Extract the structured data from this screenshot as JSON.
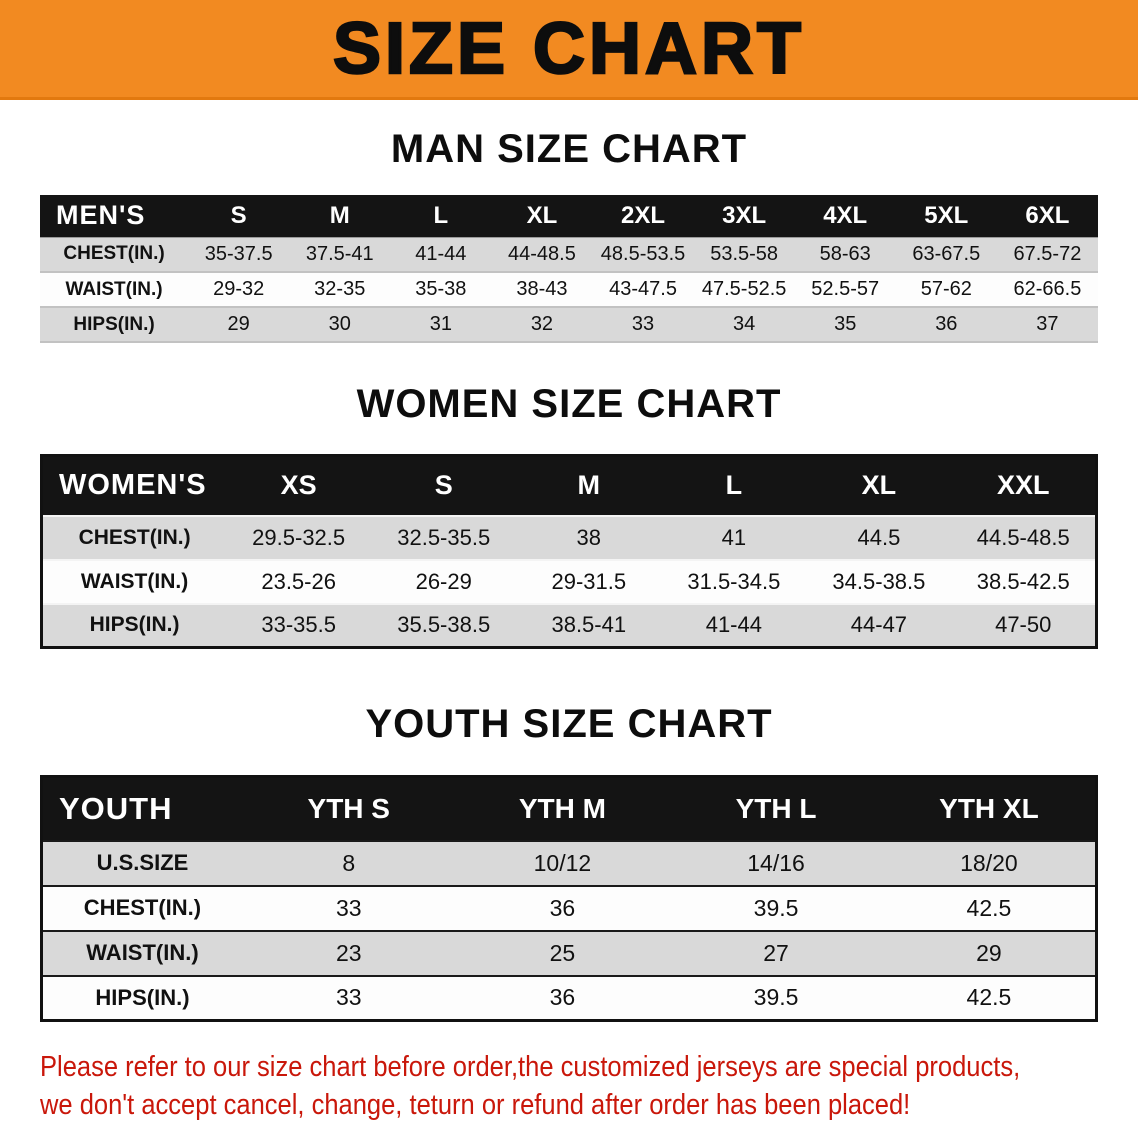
{
  "banner": {
    "title": "SIZE CHART"
  },
  "sections": [
    {
      "heading": "MAN SIZE CHART",
      "table": {
        "header": [
          "MEN'S",
          "S",
          "M",
          "L",
          "XL",
          "2XL",
          "3XL",
          "4XL",
          "5XL",
          "6XL"
        ],
        "rows": [
          [
            "CHEST(IN.)",
            "35-37.5",
            "37.5-41",
            "41-44",
            "44-48.5",
            "48.5-53.5",
            "53.5-58",
            "58-63",
            "63-67.5",
            "67.5-72"
          ],
          [
            "WAIST(IN.)",
            "29-32",
            "32-35",
            "35-38",
            "38-43",
            "43-47.5",
            "47.5-52.5",
            "52.5-57",
            "57-62",
            "62-66.5"
          ],
          [
            "HIPS(IN.)",
            "29",
            "30",
            "31",
            "32",
            "33",
            "34",
            "35",
            "36",
            "37"
          ]
        ]
      }
    },
    {
      "heading": "WOMEN SIZE CHART",
      "table": {
        "header": [
          "WOMEN'S",
          "XS",
          "S",
          "M",
          "L",
          "XL",
          "XXL"
        ],
        "rows": [
          [
            "CHEST(IN.)",
            "29.5-32.5",
            "32.5-35.5",
            "38",
            "41",
            "44.5",
            "44.5-48.5"
          ],
          [
            "WAIST(IN.)",
            "23.5-26",
            "26-29",
            "29-31.5",
            "31.5-34.5",
            "34.5-38.5",
            "38.5-42.5"
          ],
          [
            "HIPS(IN.)",
            "33-35.5",
            "35.5-38.5",
            "38.5-41",
            "41-44",
            "44-47",
            "47-50"
          ]
        ]
      }
    },
    {
      "heading": "YOUTH SIZE CHART",
      "table": {
        "header": [
          "YOUTH",
          "YTH S",
          "YTH M",
          "YTH L",
          "YTH XL"
        ],
        "rows": [
          [
            "U.S.SIZE",
            "8",
            "10/12",
            "14/16",
            "18/20"
          ],
          [
            "CHEST(IN.)",
            "33",
            "36",
            "39.5",
            "42.5"
          ],
          [
            "WAIST(IN.)",
            "23",
            "25",
            "27",
            "29"
          ],
          [
            "HIPS(IN.)",
            "33",
            "36",
            "39.5",
            "42.5"
          ]
        ]
      }
    }
  ],
  "footer": {
    "line1": "Please refer to our size chart before order,the customized jerseys are special products,",
    "line2": "we don't accept cancel, change, teturn or refund after order has been placed!"
  },
  "colors": {
    "banner_bg": "#F28A21",
    "table_header_bg": "#141414",
    "row_gray": "#D9D9D9",
    "notice_red": "#C9170A"
  }
}
